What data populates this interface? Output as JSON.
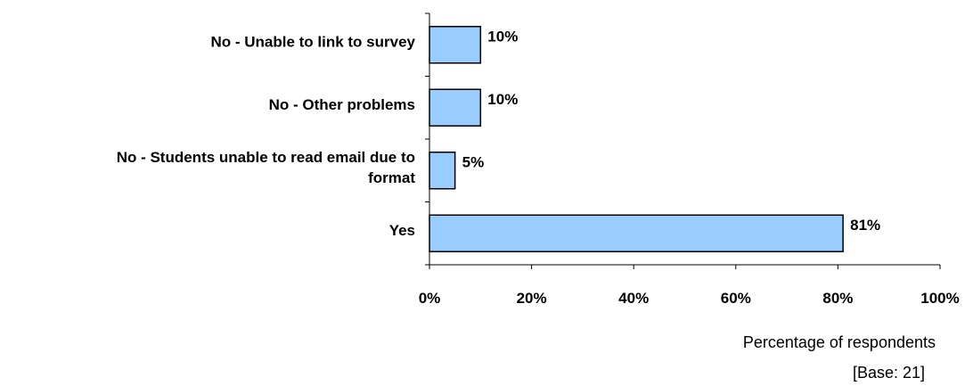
{
  "chart_data": {
    "type": "bar",
    "orientation": "horizontal",
    "categories": [
      "No - Unable to link to survey",
      "No - Other problems",
      "No - Students unable to read email due to format",
      "Yes"
    ],
    "values": [
      10,
      10,
      5,
      81
    ],
    "data_labels": [
      "10%",
      "10%",
      "5%",
      "81%"
    ],
    "xlabel": "Percentage of respondents",
    "xlim": [
      0,
      100
    ],
    "x_ticks": [
      "0%",
      "20%",
      "40%",
      "60%",
      "80%",
      "100%"
    ],
    "grid": false,
    "legend": "none",
    "bar_color": "#99ccff",
    "note": "[Base: 21]"
  }
}
